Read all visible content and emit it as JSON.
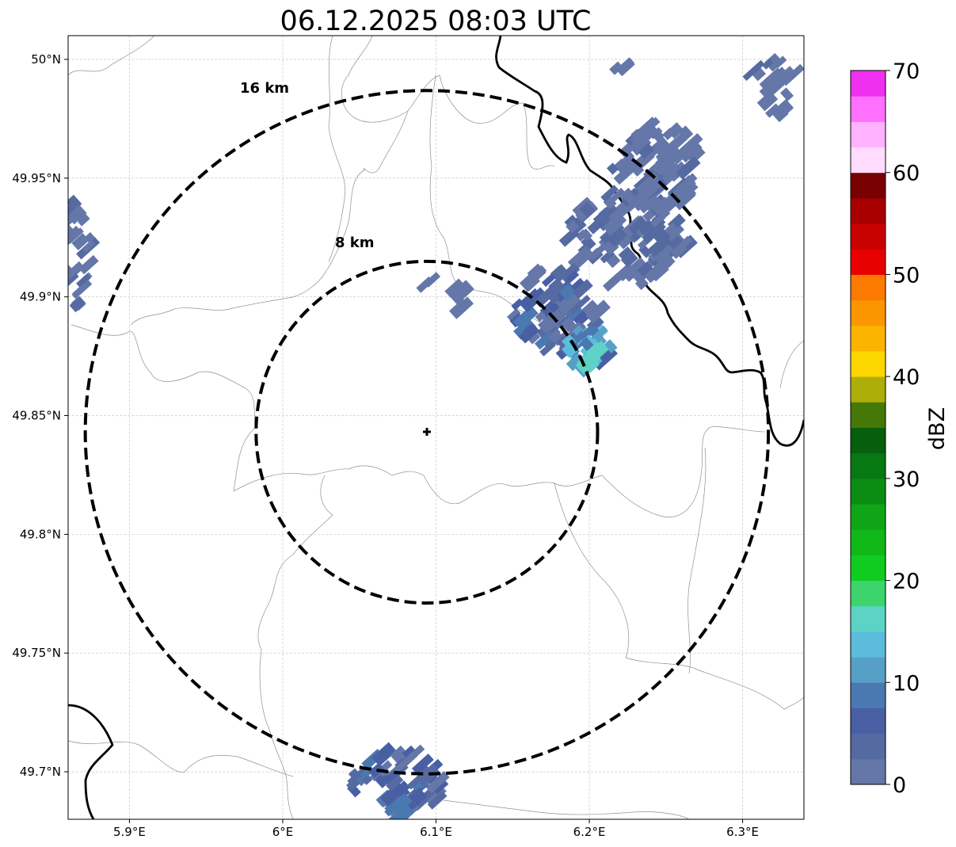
{
  "title": "06.12.2025 08:03 UTC",
  "map": {
    "lon_range": [
      5.86,
      6.34
    ],
    "lat_range": [
      49.68,
      50.01
    ],
    "radar_site": {
      "lon": 6.094,
      "lat": 49.843
    },
    "lon_ticks": [
      {
        "value": 5.9,
        "label": "5.9°E"
      },
      {
        "value": 6.0,
        "label": "6°E"
      },
      {
        "value": 6.1,
        "label": "6.1°E"
      },
      {
        "value": 6.2,
        "label": "6.2°E"
      },
      {
        "value": 6.3,
        "label": "6.3°E"
      }
    ],
    "lat_ticks": [
      {
        "value": 50.0,
        "label": "50°N"
      },
      {
        "value": 49.95,
        "label": "49.95°N"
      },
      {
        "value": 49.9,
        "label": "49.9°N"
      },
      {
        "value": 49.85,
        "label": "49.85°N"
      },
      {
        "value": 49.8,
        "label": "49.8°N"
      },
      {
        "value": 49.75,
        "label": "49.75°N"
      },
      {
        "value": 49.7,
        "label": "49.7°N"
      }
    ],
    "range_rings": [
      {
        "radius_km": 8,
        "label": "8 km"
      },
      {
        "radius_km": 16,
        "label": "16 km"
      }
    ],
    "grid": true
  },
  "colorbar": {
    "label": "dBZ",
    "min": 0,
    "max": 70,
    "step": 2.5,
    "ticks": [
      {
        "value": 0,
        "label": "0"
      },
      {
        "value": 10,
        "label": "10"
      },
      {
        "value": 20,
        "label": "20"
      },
      {
        "value": 30,
        "label": "30"
      },
      {
        "value": 40,
        "label": "40"
      },
      {
        "value": 50,
        "label": "50"
      },
      {
        "value": 60,
        "label": "60"
      },
      {
        "value": 70,
        "label": "70"
      }
    ],
    "colors": [
      "#6477a8",
      "#566aa2",
      "#4860a3",
      "#4b78b0",
      "#56a0c8",
      "#5cbcdc",
      "#5dd3c6",
      "#3ed46c",
      "#10cc20",
      "#10b818",
      "#0ea617",
      "#0b8d14",
      "#087812",
      "#055f0c",
      "#467808",
      "#aeae08",
      "#fcd600",
      "#fcb400",
      "#fc9600",
      "#fc7a00",
      "#e80000",
      "#c80000",
      "#a80000",
      "#780000",
      "#ffdcff",
      "#ffb2ff",
      "#ff70ff",
      "#f030f0"
    ]
  },
  "echo_cells": [
    {
      "lon": 6.225,
      "lat": 49.925,
      "rx": 0.04,
      "ry": 0.02,
      "n": 110,
      "dbz": [
        0,
        5
      ]
    },
    {
      "lon": 6.245,
      "lat": 49.955,
      "rx": 0.03,
      "ry": 0.018,
      "n": 70,
      "dbz": [
        0,
        3
      ]
    },
    {
      "lon": 6.18,
      "lat": 49.895,
      "rx": 0.03,
      "ry": 0.018,
      "n": 70,
      "dbz": [
        0,
        8
      ]
    },
    {
      "lon": 6.2,
      "lat": 49.878,
      "rx": 0.014,
      "ry": 0.01,
      "n": 30,
      "dbz": [
        5,
        15
      ]
    },
    {
      "lon": 6.202,
      "lat": 49.874,
      "rx": 0.004,
      "ry": 0.004,
      "n": 6,
      "dbz": [
        15,
        18
      ]
    },
    {
      "lon": 6.075,
      "lat": 49.695,
      "rx": 0.03,
      "ry": 0.015,
      "n": 60,
      "dbz": [
        0,
        10
      ]
    },
    {
      "lon": 5.865,
      "lat": 49.915,
      "rx": 0.01,
      "ry": 0.025,
      "n": 26,
      "dbz": [
        0,
        3
      ]
    },
    {
      "lon": 6.32,
      "lat": 49.99,
      "rx": 0.014,
      "ry": 0.014,
      "n": 16,
      "dbz": [
        0,
        3
      ]
    },
    {
      "lon": 6.115,
      "lat": 49.9,
      "rx": 0.006,
      "ry": 0.005,
      "n": 5,
      "dbz": [
        0,
        2
      ]
    },
    {
      "lon": 6.095,
      "lat": 49.907,
      "rx": 0.003,
      "ry": 0.003,
      "n": 2,
      "dbz": [
        0,
        1
      ]
    },
    {
      "lon": 6.222,
      "lat": 49.998,
      "rx": 0.006,
      "ry": 0.003,
      "n": 3,
      "dbz": [
        0,
        1
      ]
    }
  ]
}
